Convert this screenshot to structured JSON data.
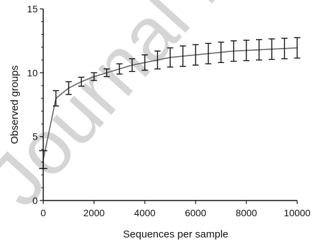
{
  "watermark": {
    "text": "Journal Pre-proof",
    "color": "#000000"
  },
  "chart_data": {
    "type": "line",
    "title": "",
    "xlabel": "Sequences per sample",
    "ylabel": "Observed groups",
    "xlim": [
      0,
      10000
    ],
    "ylim": [
      0,
      15
    ],
    "x_ticks": [
      0,
      2000,
      4000,
      6000,
      8000,
      10000
    ],
    "y_ticks": [
      0,
      5,
      10,
      15
    ],
    "grid": false,
    "legend": "none",
    "colors": {
      "curve": "#666666",
      "error_bars": "#111111",
      "axes": "#111111"
    },
    "series": [
      {
        "x": [
          0,
          500,
          1000,
          1500,
          2000,
          2500,
          3000,
          3500,
          4000,
          4500,
          5000,
          5500,
          6000,
          6500,
          7000,
          7500,
          8000,
          8500,
          9000,
          9500,
          10000
        ],
        "mean": [
          3.2,
          8.0,
          8.8,
          9.3,
          9.7,
          10.0,
          10.3,
          10.6,
          10.8,
          11.0,
          11.2,
          11.3,
          11.4,
          11.5,
          11.6,
          11.7,
          11.75,
          11.8,
          11.85,
          11.9,
          11.95
        ],
        "error": [
          0.7,
          0.6,
          0.5,
          0.35,
          0.3,
          0.3,
          0.4,
          0.5,
          0.6,
          0.7,
          0.75,
          0.8,
          0.8,
          0.8,
          0.8,
          0.8,
          0.8,
          0.8,
          0.8,
          0.8,
          0.8
        ]
      }
    ]
  }
}
